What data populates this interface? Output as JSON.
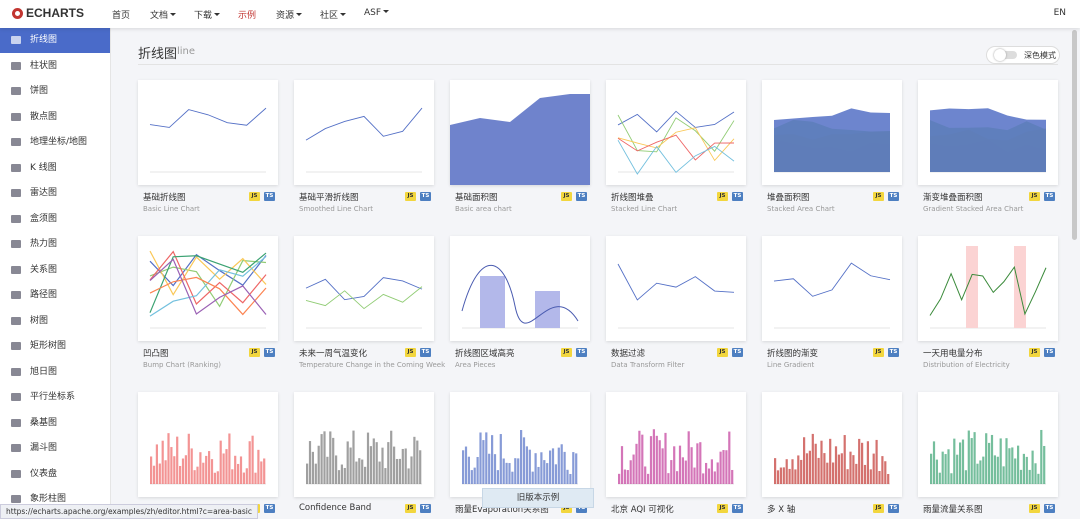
{
  "header": {
    "logo": "ECHARTS",
    "nav": [
      "首页",
      "文档",
      "下载",
      "示例",
      "资源",
      "社区",
      "ASF"
    ],
    "active_nav": 3,
    "dropdown_nav": [
      1,
      2,
      4,
      5,
      6
    ],
    "lang": "EN"
  },
  "sidebar": {
    "items": [
      "折线图",
      "柱状图",
      "饼图",
      "散点图",
      "地理坐标/地图",
      "K 线图",
      "雷达图",
      "盒须图",
      "热力图",
      "关系图",
      "路径图",
      "树图",
      "矩形树图",
      "旭日图",
      "平行坐标系",
      "桑基图",
      "漏斗图",
      "仪表盘",
      "象形柱图"
    ],
    "active": 0
  },
  "section": {
    "title": "折线图",
    "subtitle": "line",
    "dark_mode": "深色模式"
  },
  "badges": [
    "JS",
    "TS"
  ],
  "cards": [
    {
      "title": "基础折线图",
      "subtitle": "Basic Line Chart"
    },
    {
      "title": "基础平滑折线图",
      "subtitle": "Smoothed Line Chart"
    },
    {
      "title": "基础面积图",
      "subtitle": "Basic area chart"
    },
    {
      "title": "折线图堆叠",
      "subtitle": "Stacked Line Chart"
    },
    {
      "title": "堆叠面积图",
      "subtitle": "Stacked Area Chart"
    },
    {
      "title": "渐变堆叠面积图",
      "subtitle": "Gradient Stacked Area Chart"
    },
    {
      "title": "凹凸图",
      "subtitle": "Bump Chart (Ranking)"
    },
    {
      "title": "未来一周气温变化",
      "subtitle": "Temperature Change in the Coming Week"
    },
    {
      "title": "折线图区域高亮",
      "subtitle": "Area Pieces"
    },
    {
      "title": "数据过滤",
      "subtitle": "Data Transform Filter"
    },
    {
      "title": "折线图的渐变",
      "subtitle": "Line Gradient"
    },
    {
      "title": "一天用电量分布",
      "subtitle": "Distribution of Electricity"
    },
    {},
    {
      "title": "Confidence Band"
    },
    {
      "title": "雨量Evaporation关系图"
    },
    {
      "title": "北京 AQI 可视化"
    },
    {
      "title": "多 X 轴"
    },
    {
      "title": "雨量流量关系图"
    }
  ],
  "status_url": "https://echarts.apache.org/examples/zh/editor.html?c=area-basic",
  "old_version": "旧版本示例"
}
